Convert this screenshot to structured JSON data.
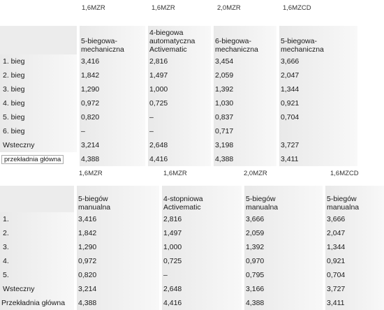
{
  "table1": {
    "engines": [
      "1,6MZR",
      "1,6MZR",
      "2,0MZR",
      "1,6MZCD"
    ],
    "headers": [
      [
        "5-biegowa-",
        "mechaniczna"
      ],
      [
        "4-biegowa",
        "automatyczna",
        "Activematic"
      ],
      [
        "6-biegowa-",
        "mechaniczna"
      ],
      [
        "5-biegowa-",
        "mechaniczna"
      ]
    ],
    "rows": [
      {
        "label": "1. bieg",
        "values": [
          "3,416",
          "2,816",
          "3,454",
          "3,666"
        ]
      },
      {
        "label": "2. bieg",
        "values": [
          "1,842",
          "1,497",
          "2,059",
          "2,047"
        ]
      },
      {
        "label": "3. bieg",
        "values": [
          "1,290",
          "1,000",
          "1,392",
          "1,344"
        ]
      },
      {
        "label": "4. bieg",
        "values": [
          "0,972",
          "0,725",
          "1,030",
          "0,921"
        ]
      },
      {
        "label": "5. bieg",
        "values": [
          "0,820",
          "–",
          "0,837",
          "0,704"
        ]
      },
      {
        "label": "6. bieg",
        "values": [
          "–",
          "–",
          "0,717",
          ""
        ]
      },
      {
        "label": "Wsteczny",
        "values": [
          "3,214",
          "2,648",
          "3,198",
          "3,727"
        ]
      },
      {
        "label": "przekładnia główna",
        "values": [
          "4,388",
          "4,416",
          "4,388",
          "3,411"
        ]
      }
    ]
  },
  "table2": {
    "engines": [
      "1,6MZR",
      "1,6MZR",
      "2,0MZR",
      "1,6MZCD"
    ],
    "headers": [
      [
        "5-biegów",
        "manualna"
      ],
      [
        "4-stopniowa",
        "Activematic"
      ],
      [
        "5-biegów",
        "manualna"
      ],
      [
        "5-biegów",
        "manualna"
      ]
    ],
    "rows": [
      {
        "label": "1.",
        "values": [
          "3,416",
          "2,816",
          "3,666",
          "3,666"
        ]
      },
      {
        "label": "2.",
        "values": [
          "1,842",
          "1,497",
          "2,059",
          "2,047"
        ]
      },
      {
        "label": "3.",
        "values": [
          "1,290",
          "1,000",
          "1,392",
          "1,344"
        ]
      },
      {
        "label": "4.",
        "values": [
          "0,972",
          "0,725",
          "0,970",
          "0,921"
        ]
      },
      {
        "label": "5.",
        "values": [
          "0,820",
          "–",
          "0,795",
          "0,704"
        ]
      },
      {
        "label": "Wsteczny",
        "values": [
          "3,214",
          "2,648",
          "3,166",
          "3,727"
        ]
      },
      {
        "label": "Przekładnia główna",
        "values": [
          "4,388",
          "4,416",
          "4,388",
          "3,411"
        ]
      }
    ]
  }
}
